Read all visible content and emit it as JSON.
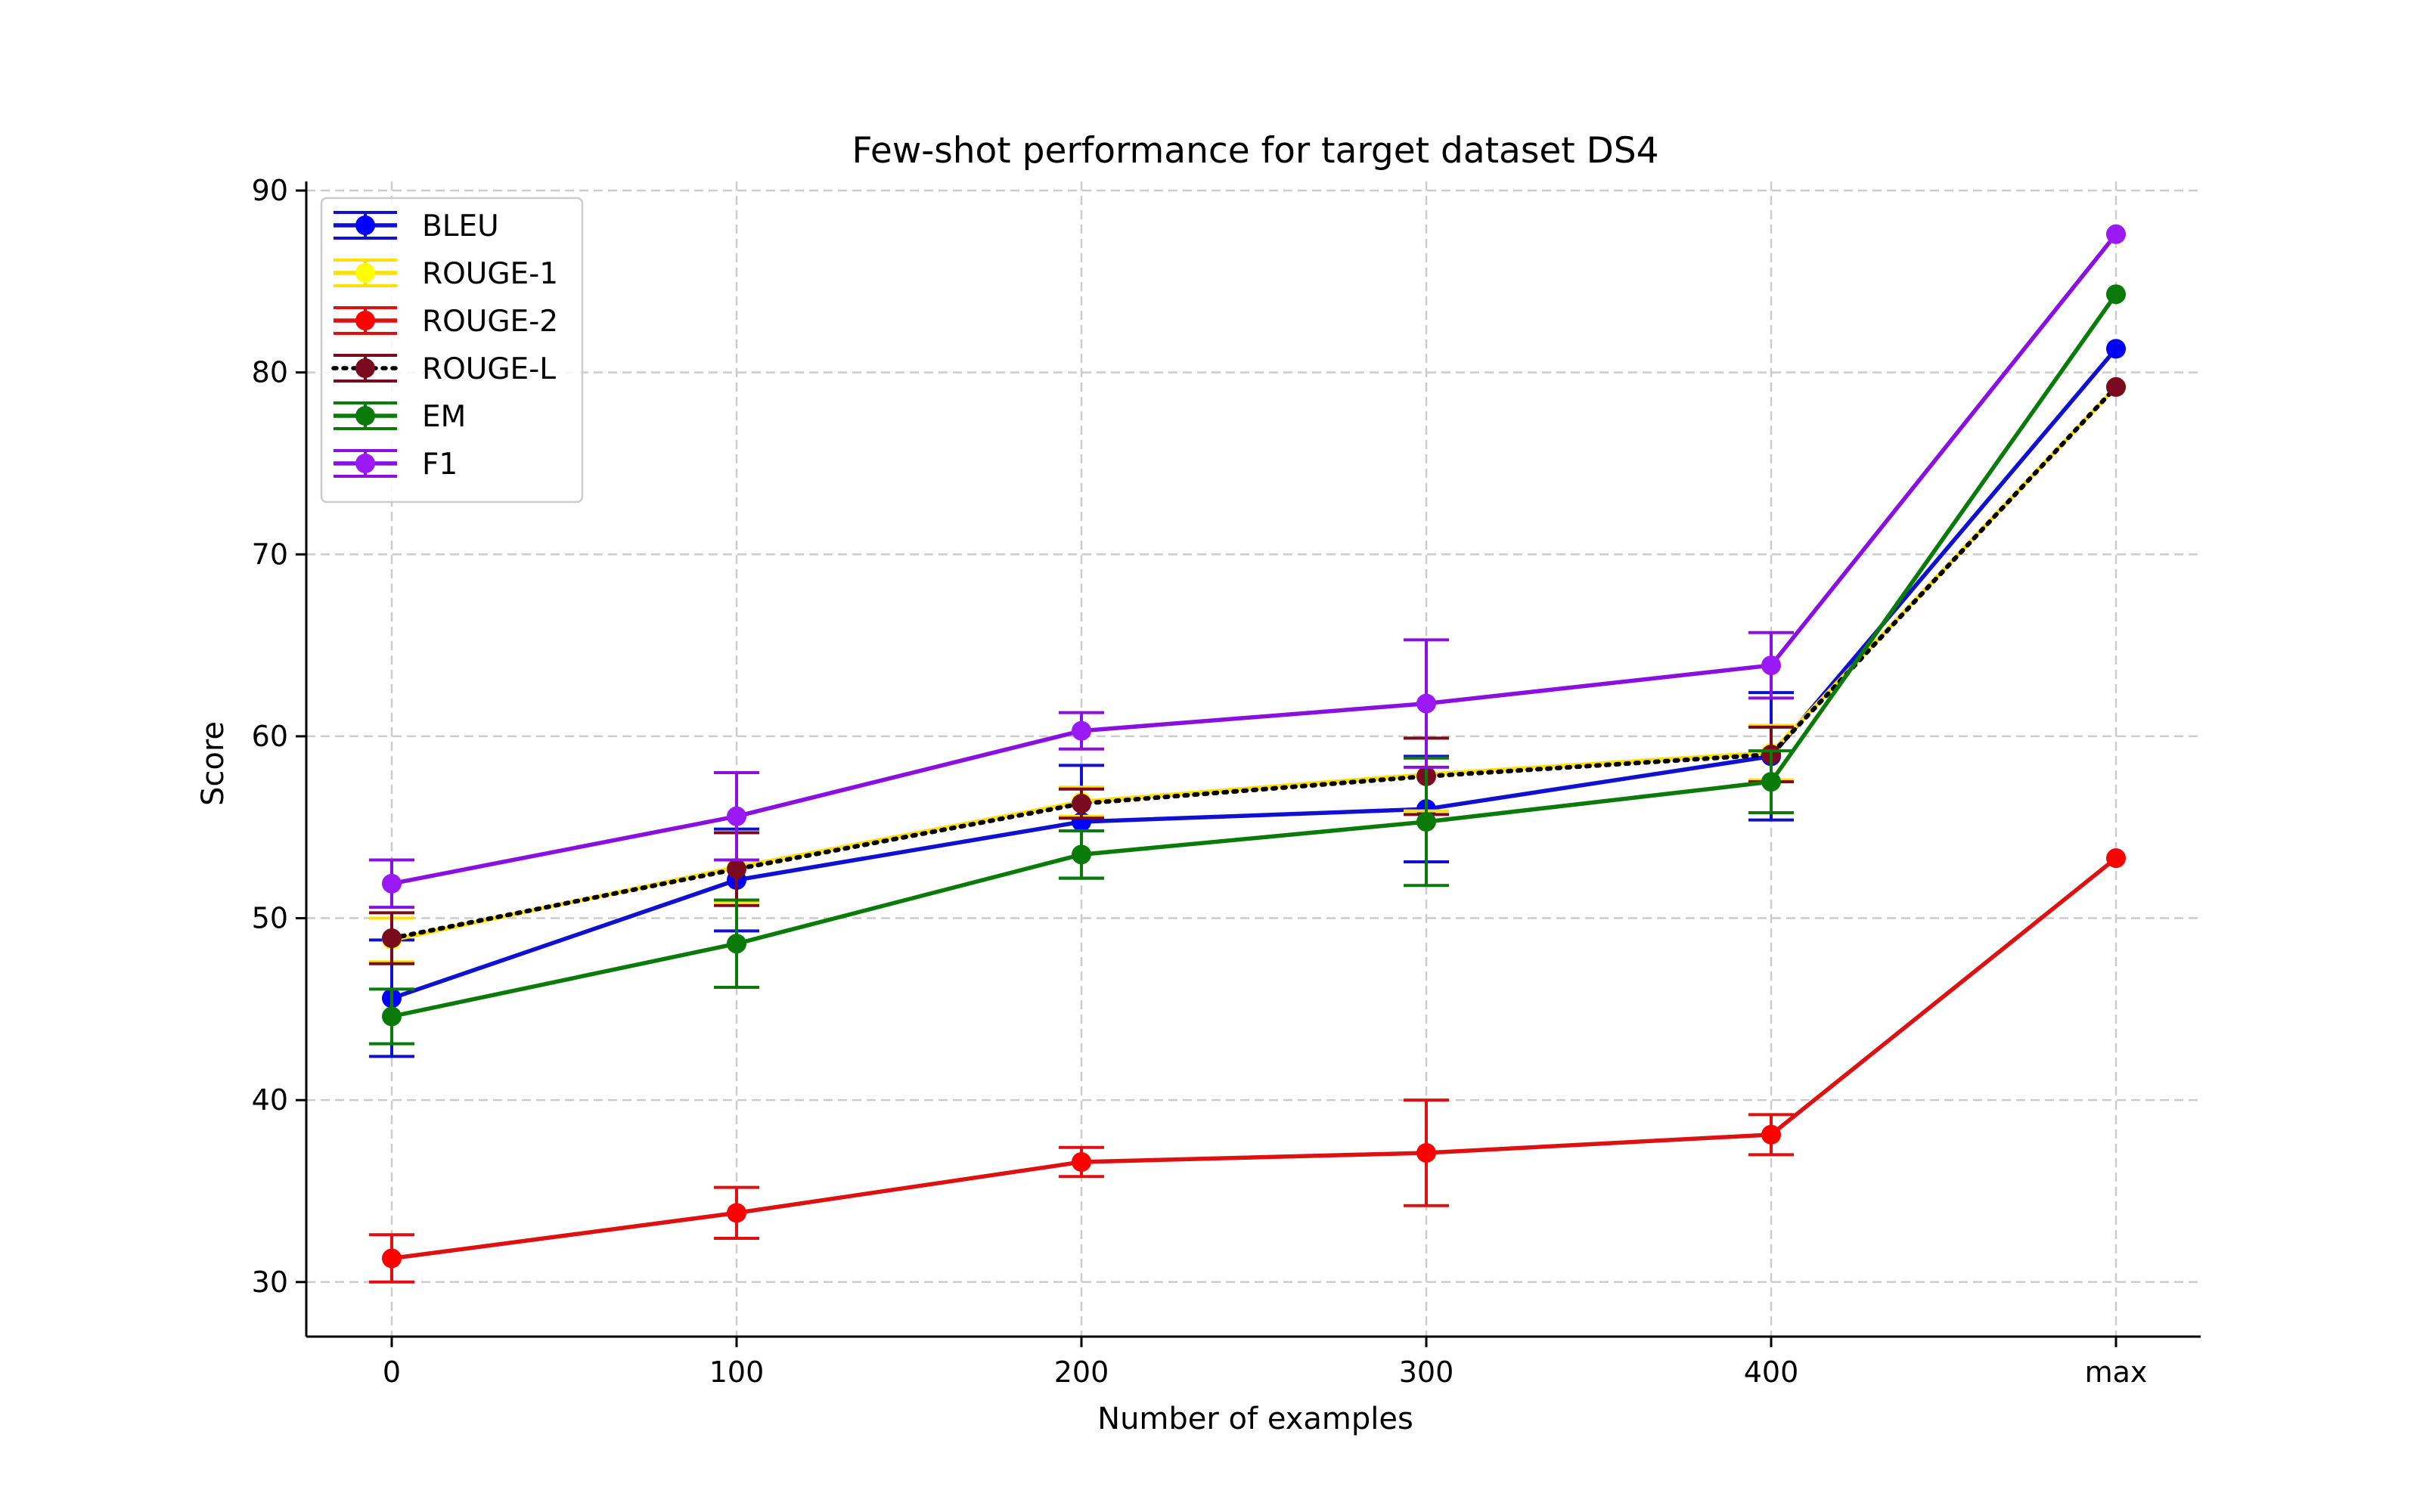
{
  "chart_data": {
    "type": "line",
    "title": "Few-shot performance for target dataset DS4",
    "xlabel": "Number of examples",
    "ylabel": "Score",
    "categories": [
      "0",
      "100",
      "200",
      "300",
      "400",
      "max"
    ],
    "ylim": [
      27,
      90.5
    ],
    "yticks": [
      30,
      40,
      50,
      60,
      70,
      80,
      90
    ],
    "grid": true,
    "legend_position": "top-left",
    "series": [
      {
        "name": "BLEU",
        "color": "#0000ff",
        "line_color": "#1010d0",
        "linestyle": "solid",
        "values": [
          45.6,
          52.1,
          55.3,
          56.0,
          58.9,
          81.3
        ],
        "errors": [
          3.2,
          2.8,
          3.1,
          2.9,
          3.5,
          null
        ]
      },
      {
        "name": "ROUGE-1",
        "color": "#ffff00",
        "line_color": "#ffe000",
        "linestyle": "solid",
        "values": [
          48.8,
          52.8,
          56.4,
          57.9,
          59.1,
          79.2
        ],
        "errors": [
          1.2,
          1.9,
          0.8,
          2.0,
          1.5,
          null
        ]
      },
      {
        "name": "ROUGE-2",
        "color": "#ff0000",
        "line_color": "#dd1111",
        "linestyle": "solid",
        "values": [
          31.3,
          33.8,
          36.6,
          37.1,
          38.1,
          53.3
        ],
        "errors": [
          1.3,
          1.4,
          0.8,
          2.9,
          1.1,
          null
        ]
      },
      {
        "name": "ROUGE-L",
        "color": "#7a0a1e",
        "line_color": "#000000",
        "linestyle": "dotted",
        "values": [
          48.9,
          52.7,
          56.3,
          57.8,
          59.0,
          79.2
        ],
        "errors": [
          1.4,
          2.0,
          0.8,
          2.1,
          1.5,
          null
        ]
      },
      {
        "name": "EM",
        "color": "#0a7a0a",
        "line_color": "#0a7a0a",
        "linestyle": "solid",
        "values": [
          44.6,
          48.6,
          53.5,
          55.3,
          57.5,
          84.3
        ],
        "errors": [
          1.5,
          2.4,
          1.3,
          3.5,
          1.7,
          null
        ]
      },
      {
        "name": "F1",
        "color": "#9b19f5",
        "line_color": "#8a10e0",
        "linestyle": "solid",
        "values": [
          51.9,
          55.6,
          60.3,
          61.8,
          63.9,
          87.6
        ],
        "errors": [
          1.3,
          2.4,
          1.0,
          3.5,
          1.8,
          null
        ]
      }
    ]
  }
}
